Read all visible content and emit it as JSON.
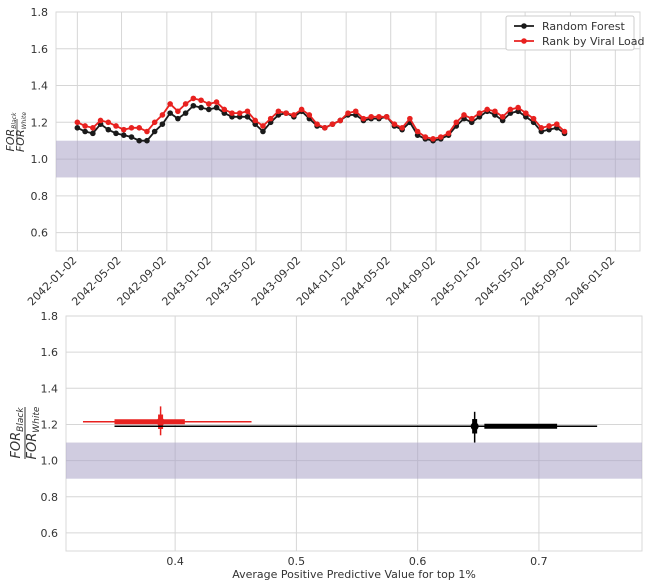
{
  "chart_data": [
    {
      "type": "line",
      "ylabel": "FOR_Black / FOR_White",
      "ylabel_num": "FOR",
      "ylabel_num_sub": "Black",
      "ylabel_den": "FOR",
      "ylabel_den_sub": "White",
      "ylim": [
        0.5,
        1.8
      ],
      "yticks": [
        "0.6",
        "0.8",
        "1.0",
        "1.2",
        "1.4",
        "1.6",
        "1.8"
      ],
      "ytick_values": [
        0.6,
        0.8,
        1.0,
        1.2,
        1.4,
        1.6,
        1.8
      ],
      "xticks": [
        "2042-01-02",
        "2042-05-02",
        "2042-09-02",
        "2043-01-02",
        "2043-05-02",
        "2043-09-02",
        "2044-01-02",
        "2044-05-02",
        "2044-09-02",
        "2045-01-02",
        "2045-05-02",
        "2045-09-02",
        "2046-01-02"
      ],
      "xlim": [
        "2041-11-05",
        "2046-03-10"
      ],
      "band": [
        0.9,
        1.1
      ],
      "band_color": "#a9a3c6",
      "grid": true,
      "legend_position": "top-right",
      "x": [
        "2042-01-02",
        "2042-01-23",
        "2042-02-13",
        "2042-03-06",
        "2042-03-27",
        "2042-04-17",
        "2042-05-08",
        "2042-05-29",
        "2042-06-19",
        "2042-07-10",
        "2042-07-31",
        "2042-08-21",
        "2042-09-11",
        "2042-10-02",
        "2042-10-23",
        "2042-11-13",
        "2042-12-04",
        "2042-12-25",
        "2043-01-15",
        "2043-02-05",
        "2043-02-26",
        "2043-03-19",
        "2043-04-09",
        "2043-04-30",
        "2043-05-21",
        "2043-06-11",
        "2043-07-02",
        "2043-07-23",
        "2043-08-13",
        "2043-09-03",
        "2043-09-24",
        "2043-10-15",
        "2043-11-05",
        "2043-11-26",
        "2043-12-17",
        "2044-01-07",
        "2044-01-28",
        "2044-02-18",
        "2044-03-10",
        "2044-03-31",
        "2044-04-21",
        "2044-05-12",
        "2044-06-02",
        "2044-06-23",
        "2044-07-14",
        "2044-08-04",
        "2044-08-25",
        "2044-09-15",
        "2044-10-06",
        "2044-10-27",
        "2044-11-17",
        "2044-12-08",
        "2044-12-29",
        "2045-01-19",
        "2045-02-09",
        "2045-03-02",
        "2045-03-23",
        "2045-04-13",
        "2045-05-04",
        "2045-05-25",
        "2045-06-15",
        "2045-07-06",
        "2045-07-27",
        "2045-08-17"
      ],
      "series": [
        {
          "name": "Random Forest",
          "color": "#1a1a1a",
          "values": [
            1.17,
            1.15,
            1.14,
            1.19,
            1.16,
            1.14,
            1.13,
            1.12,
            1.1,
            1.1,
            1.15,
            1.19,
            1.25,
            1.22,
            1.25,
            1.29,
            1.28,
            1.27,
            1.28,
            1.25,
            1.23,
            1.23,
            1.23,
            1.19,
            1.15,
            1.2,
            1.24,
            1.25,
            1.23,
            1.26,
            1.22,
            1.18,
            1.17,
            1.19,
            1.21,
            1.24,
            1.24,
            1.21,
            1.22,
            1.22,
            1.23,
            1.18,
            1.16,
            1.2,
            1.13,
            1.11,
            1.1,
            1.11,
            1.13,
            1.18,
            1.22,
            1.2,
            1.23,
            1.26,
            1.24,
            1.21,
            1.25,
            1.26,
            1.23,
            1.2,
            1.15,
            1.16,
            1.17,
            1.14
          ]
        },
        {
          "name": "Rank by Viral Load",
          "color": "#e8211f",
          "values": [
            1.2,
            1.18,
            1.17,
            1.21,
            1.2,
            1.18,
            1.16,
            1.17,
            1.17,
            1.15,
            1.2,
            1.24,
            1.3,
            1.26,
            1.3,
            1.33,
            1.32,
            1.3,
            1.31,
            1.27,
            1.25,
            1.25,
            1.26,
            1.21,
            1.18,
            1.22,
            1.26,
            1.25,
            1.24,
            1.27,
            1.24,
            1.19,
            1.17,
            1.19,
            1.21,
            1.25,
            1.26,
            1.22,
            1.23,
            1.23,
            1.23,
            1.19,
            1.17,
            1.22,
            1.15,
            1.12,
            1.11,
            1.12,
            1.14,
            1.2,
            1.24,
            1.22,
            1.25,
            1.27,
            1.26,
            1.23,
            1.27,
            1.28,
            1.25,
            1.22,
            1.17,
            1.18,
            1.19,
            1.15
          ]
        }
      ]
    },
    {
      "type": "scatter",
      "xlabel": "Average Positive Predictive Value for top 1%",
      "ylabel": "FOR_Black / FOR_White",
      "ylabel_num": "FOR",
      "ylabel_num_sub": "Black",
      "ylabel_den": "FOR",
      "ylabel_den_sub": "White",
      "xlim": [
        0.31,
        0.785
      ],
      "ylim": [
        0.5,
        1.8
      ],
      "xticks": [
        "0.4",
        "0.5",
        "0.6",
        "0.7"
      ],
      "xtick_values": [
        0.4,
        0.5,
        0.6,
        0.7
      ],
      "yticks": [
        "0.6",
        "0.8",
        "1.0",
        "1.2",
        "1.4",
        "1.6",
        "1.8"
      ],
      "ytick_values": [
        0.6,
        0.8,
        1.0,
        1.2,
        1.4,
        1.6,
        1.8
      ],
      "band": [
        0.9,
        1.1
      ],
      "band_color": "#a9a3c6",
      "grid": true,
      "series": [
        {
          "name": "Rank by Viral Load",
          "color": "#e8211f",
          "x": 0.388,
          "y": 1.215,
          "x_range_thin": [
            0.324,
            0.463
          ],
          "x_range_thick": [
            0.35,
            0.408
          ],
          "y_range": [
            1.14,
            1.3
          ]
        },
        {
          "name": "Random Forest",
          "color": "#000000",
          "x": 0.647,
          "y": 1.19,
          "x_range_thin": [
            0.35,
            0.748
          ],
          "x_range_thick": [
            0.655,
            0.715
          ],
          "y_range": [
            1.1,
            1.27
          ]
        }
      ]
    }
  ]
}
